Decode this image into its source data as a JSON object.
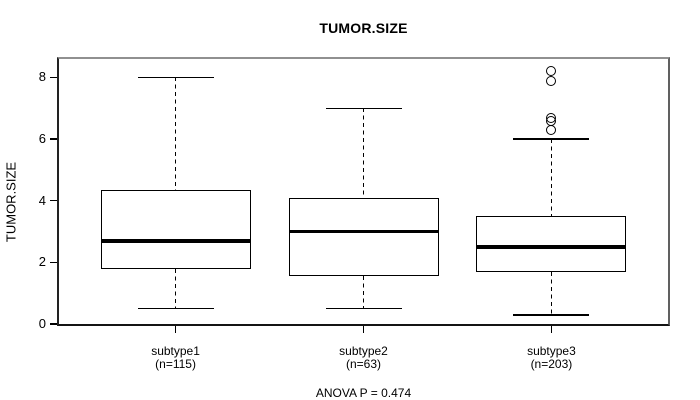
{
  "figure": {
    "background_color": "#ffffff",
    "line_color": "#000000",
    "frame_top_color": "#909090"
  },
  "chart_data": {
    "type": "boxplot",
    "title": "TUMOR.SIZE",
    "ylabel": "TUMOR.SIZE",
    "xlabel": "",
    "footer": "ANOVA P = 0.474",
    "ylim": [
      0,
      8.6
    ],
    "yticks": [
      0,
      2,
      4,
      6,
      8
    ],
    "grid": false,
    "legend": null,
    "groups": [
      {
        "label": "subtype1",
        "sublabel": "(n=115)",
        "n": 115,
        "whisker_low": 0.5,
        "q1": 1.8,
        "median": 2.7,
        "q3": 4.35,
        "whisker_high": 8.0,
        "outliers": []
      },
      {
        "label": "subtype2",
        "sublabel": "(n=63)",
        "n": 63,
        "whisker_low": 0.5,
        "q1": 1.55,
        "median": 3.0,
        "q3": 4.1,
        "whisker_high": 7.0,
        "outliers": []
      },
      {
        "label": "subtype3",
        "sublabel": "(n=203)",
        "n": 203,
        "whisker_low": 0.3,
        "q1": 1.7,
        "median": 2.5,
        "q3": 3.5,
        "whisker_high": 6.0,
        "outliers": [
          6.3,
          6.6,
          6.7,
          7.9,
          8.2
        ]
      }
    ]
  }
}
